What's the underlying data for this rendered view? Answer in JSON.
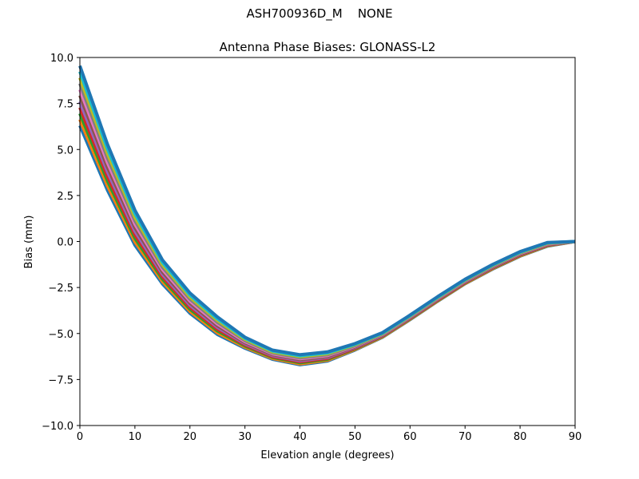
{
  "figure": {
    "suptitle": "ASH700936D_M    NONE"
  },
  "chart_data": {
    "type": "line",
    "title": "Antenna Phase Biases: GLONASS-L2",
    "xlabel": "Elevation angle (degrees)",
    "ylabel": "Bias (mm)",
    "xlim": [
      0,
      90
    ],
    "ylim": [
      -10,
      10
    ],
    "xticks": [
      "0",
      "10",
      "20",
      "30",
      "40",
      "50",
      "60",
      "70",
      "80",
      "90"
    ],
    "yticks": [
      "10.0",
      "7.5",
      "5.0",
      "2.5",
      "0.0",
      "−2.5",
      "−5.0",
      "−7.5",
      "−10.0"
    ],
    "grid": false,
    "legend": "none",
    "colors": [
      "#1f77b4",
      "#ff7f0e",
      "#2ca02c",
      "#d62728",
      "#9467bd",
      "#8c564b",
      "#e377c2",
      "#7f7f7f",
      "#bcbd22",
      "#17becf"
    ],
    "x": [
      0,
      5,
      10,
      15,
      20,
      25,
      30,
      35,
      40,
      45,
      50,
      55,
      60,
      65,
      70,
      75,
      80,
      85,
      90
    ],
    "series": [
      {
        "values": [
          6.3,
          2.8,
          -0.2,
          -2.3,
          -3.9,
          -5.05,
          -5.8,
          -6.4,
          -6.7,
          -6.5,
          -5.9,
          -5.2,
          -4.25,
          -3.25,
          -2.3,
          -1.5,
          -0.8,
          -0.25,
          0
        ]
      },
      {
        "values": [
          6.63,
          3.05,
          -0.01,
          -2.17,
          -3.79,
          -4.96,
          -5.74,
          -6.35,
          -6.65,
          -6.45,
          -5.87,
          -5.18,
          -4.23,
          -3.23,
          -2.28,
          -1.48,
          -0.78,
          -0.23,
          0
        ]
      },
      {
        "values": [
          6.95,
          3.3,
          0.18,
          -2.04,
          -3.68,
          -4.86,
          -5.68,
          -6.3,
          -6.59,
          -6.4,
          -5.83,
          -5.15,
          -4.2,
          -3.2,
          -2.25,
          -1.45,
          -0.75,
          -0.21,
          0
        ]
      },
      {
        "values": [
          7.28,
          3.55,
          0.37,
          -1.91,
          -3.57,
          -4.77,
          -5.62,
          -6.25,
          -6.54,
          -6.35,
          -5.8,
          -5.13,
          -4.18,
          -3.18,
          -2.23,
          -1.43,
          -0.73,
          -0.19,
          0
        ]
      },
      {
        "values": [
          7.6,
          3.8,
          0.56,
          -1.78,
          -3.46,
          -4.67,
          -5.56,
          -6.2,
          -6.48,
          -6.3,
          -5.76,
          -5.1,
          -4.15,
          -3.15,
          -2.2,
          -1.4,
          -0.7,
          -0.17,
          0
        ]
      },
      {
        "values": [
          7.93,
          4.05,
          0.75,
          -1.65,
          -3.35,
          -4.58,
          -5.5,
          -6.15,
          -6.43,
          -6.25,
          -5.73,
          -5.08,
          -4.13,
          -3.13,
          -2.18,
          -1.38,
          -0.68,
          -0.15,
          0
        ]
      },
      {
        "values": [
          8.25,
          4.3,
          0.94,
          -1.52,
          -3.24,
          -4.48,
          -5.44,
          -6.1,
          -6.37,
          -6.2,
          -5.69,
          -5.05,
          -4.1,
          -3.1,
          -2.15,
          -1.35,
          -0.65,
          -0.13,
          0
        ]
      },
      {
        "values": [
          8.58,
          4.55,
          1.13,
          -1.39,
          -3.13,
          -4.39,
          -5.38,
          -6.05,
          -6.32,
          -6.15,
          -5.66,
          -5.03,
          -4.08,
          -3.08,
          -2.13,
          -1.33,
          -0.63,
          -0.11,
          0
        ]
      },
      {
        "values": [
          8.9,
          4.8,
          1.32,
          -1.26,
          -3.02,
          -4.29,
          -5.32,
          -6.0,
          -6.26,
          -6.1,
          -5.62,
          -5.0,
          -4.05,
          -3.05,
          -2.1,
          -1.3,
          -0.6,
          -0.09,
          0
        ]
      },
      {
        "values": [
          9.23,
          5.05,
          1.51,
          -1.13,
          -2.91,
          -4.2,
          -5.26,
          -5.95,
          -6.21,
          -6.05,
          -5.59,
          -4.98,
          -4.03,
          -3.03,
          -2.08,
          -1.28,
          -0.58,
          -0.07,
          0
        ]
      },
      {
        "values": [
          9.55,
          5.3,
          1.7,
          -1.0,
          -2.8,
          -4.1,
          -5.2,
          -5.9,
          -6.15,
          -6.0,
          -5.55,
          -4.95,
          -4.0,
          -3.0,
          -2.05,
          -1.25,
          -0.55,
          -0.05,
          0
        ]
      }
    ]
  }
}
